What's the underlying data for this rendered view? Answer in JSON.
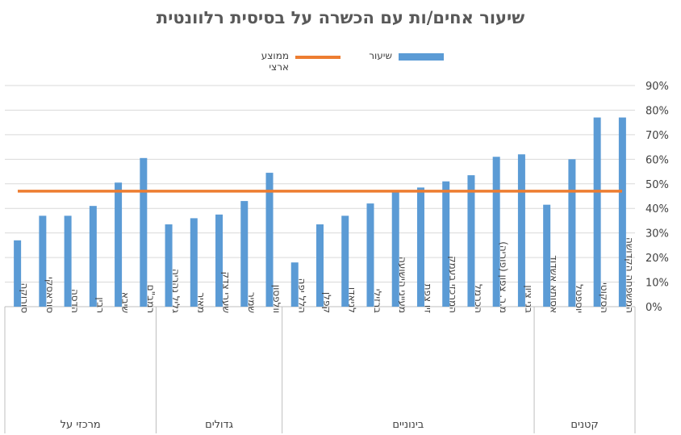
{
  "chart_data": {
    "type": "bar",
    "title": "שיעור אחים/ות עם הכשרה על בסיסית רלוונטית",
    "xlabel": "",
    "ylabel": "",
    "ylim": [
      0,
      90
    ],
    "y_ticks": [
      "0%",
      "10%",
      "20%",
      "30%",
      "40%",
      "50%",
      "60%",
      "70%",
      "80%",
      "90%"
    ],
    "x_direction": "right-to-left",
    "grid": true,
    "legend_position": "top",
    "categories": [
      "המשפחה הקדושה",
      "הסקוטי",
      "יוספטל",
      "אסותא אשדוד",
      "בני ציון",
      "מ.ר. צפון (פוריה)",
      "הכרמל",
      "המרכזי בעמק",
      "זיו צפת",
      "מעייני הישועה",
      "ברזילי",
      "לניאדו",
      "קפלן",
      "הלל יפה",
      "וולפסון",
      "שמיר",
      "שערי צדק",
      "מאיר",
      "גליל נהריה",
      "רמב\"ם",
      "שיבא",
      "רבין",
      "הדסה",
      "סוראסקי",
      "סורוקה"
    ],
    "groups": [
      {
        "label": "קטנים",
        "count": 4
      },
      {
        "label": "בינוניים",
        "count": 10
      },
      {
        "label": "גדולים",
        "count": 5
      },
      {
        "label": "מרכזי על",
        "count": 6
      }
    ],
    "series": [
      {
        "name": "שיעור",
        "type": "bar",
        "color": "#5B9BD5",
        "values": [
          77,
          77,
          60,
          41.5,
          62,
          61,
          53.5,
          51,
          48.5,
          47,
          42,
          37,
          33.5,
          18,
          54.5,
          43,
          37.5,
          36,
          33.5,
          60.5,
          50.5,
          41,
          37,
          37,
          27
        ]
      },
      {
        "name": "ממוצע ארצי",
        "type": "line",
        "color": "#ED7D31",
        "value": 47
      }
    ]
  }
}
